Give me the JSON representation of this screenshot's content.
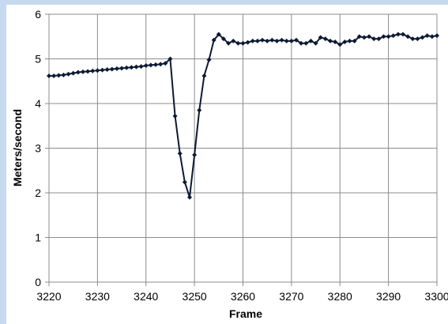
{
  "chart_data": {
    "type": "line",
    "title": "",
    "xlabel": "Frame",
    "ylabel": "Meters/second",
    "xlim": [
      3220,
      3300
    ],
    "ylim": [
      0,
      6
    ],
    "x_ticks": [
      3220,
      3230,
      3240,
      3250,
      3260,
      3270,
      3280,
      3290,
      3300
    ],
    "y_ticks": [
      0,
      1,
      2,
      3,
      4,
      5,
      6
    ],
    "grid": true,
    "legend": "none",
    "series": [
      {
        "color": "#0d1a33",
        "marker": "diamond",
        "x": [
          3220,
          3221,
          3222,
          3223,
          3224,
          3225,
          3226,
          3227,
          3228,
          3229,
          3230,
          3231,
          3232,
          3233,
          3234,
          3235,
          3236,
          3237,
          3238,
          3239,
          3240,
          3241,
          3242,
          3243,
          3244,
          3245,
          3246,
          3247,
          3248,
          3249,
          3250,
          3251,
          3252,
          3253,
          3254,
          3255,
          3256,
          3257,
          3258,
          3259,
          3260,
          3261,
          3262,
          3263,
          3264,
          3265,
          3266,
          3267,
          3268,
          3269,
          3270,
          3271,
          3272,
          3273,
          3274,
          3275,
          3276,
          3277,
          3278,
          3279,
          3280,
          3281,
          3282,
          3283,
          3284,
          3285,
          3286,
          3287,
          3288,
          3289,
          3290,
          3291,
          3292,
          3293,
          3294,
          3295,
          3296,
          3297,
          3298,
          3299,
          3300
        ],
        "y": [
          4.62,
          4.62,
          4.63,
          4.64,
          4.66,
          4.68,
          4.7,
          4.71,
          4.72,
          4.73,
          4.74,
          4.75,
          4.76,
          4.77,
          4.78,
          4.79,
          4.8,
          4.81,
          4.82,
          4.83,
          4.85,
          4.86,
          4.87,
          4.88,
          4.9,
          5.0,
          3.72,
          2.88,
          2.24,
          1.9,
          2.85,
          3.85,
          4.62,
          4.98,
          5.42,
          5.55,
          5.45,
          5.35,
          5.4,
          5.35,
          5.35,
          5.37,
          5.4,
          5.4,
          5.42,
          5.4,
          5.42,
          5.4,
          5.42,
          5.4,
          5.4,
          5.42,
          5.35,
          5.35,
          5.4,
          5.35,
          5.48,
          5.45,
          5.4,
          5.38,
          5.32,
          5.38,
          5.4,
          5.4,
          5.5,
          5.48,
          5.5,
          5.45,
          5.45,
          5.5,
          5.5,
          5.52,
          5.55,
          5.55,
          5.5,
          5.45,
          5.45,
          5.48,
          5.52,
          5.5,
          5.52
        ]
      }
    ]
  }
}
